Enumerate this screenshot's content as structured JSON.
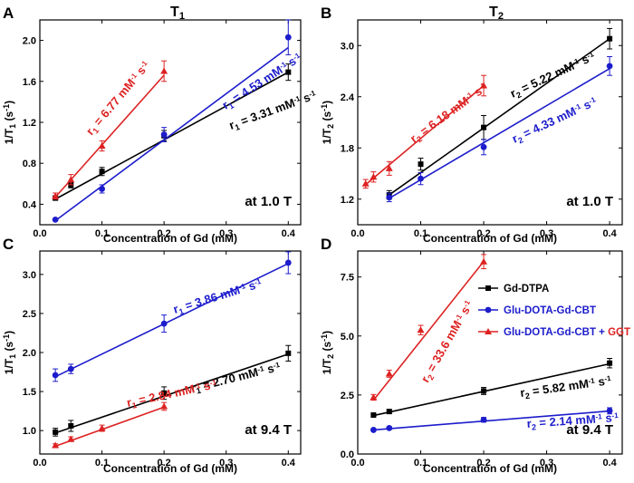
{
  "figure": {
    "x_unit_note": "concentration in mM",
    "colors": {
      "black": "#000000",
      "blue": "#1c1ccc",
      "red": "#dd2222",
      "frame": "#000000"
    }
  },
  "legend": {
    "entries": [
      {
        "label": "Gd-DTPA",
        "color": "#000000",
        "marker": "square",
        "suffix": ""
      },
      {
        "label": "Glu-DOTA-Gd-CBT",
        "color": "#1c1ccc",
        "marker": "circle",
        "suffix": ""
      },
      {
        "label": "Glu-DOTA-Gd-CBT + ",
        "color": "#dd2222",
        "marker": "triangle",
        "suffix": "GGT"
      }
    ]
  },
  "chart_data": [
    {
      "id": "A",
      "panel_label": "A",
      "title_main": "T",
      "title_sub": "1",
      "type": "scatter",
      "xlabel": "Concentration of Gd (mM)",
      "ylabel_main": "1/T",
      "ylabel_sub": "1",
      "ylabel_unit": " (s",
      "ylabel_exp": "-1",
      "ylabel_close": ")",
      "xlim": [
        0.0,
        0.42
      ],
      "ylim": [
        0.2,
        2.2
      ],
      "xticks": [
        0.0,
        0.1,
        0.2,
        0.3,
        0.4
      ],
      "xtick_labels": [
        "0.0",
        "0.1",
        "0.2",
        "0.3",
        "0.4"
      ],
      "yticks": [
        0.4,
        0.8,
        1.2,
        1.6,
        2.0
      ],
      "ytick_labels": [
        "0.4",
        "0.8",
        "1.2",
        "1.6",
        "2.0"
      ],
      "field_label": "at 1.0 T",
      "series": [
        {
          "name": "Gd-DTPA",
          "color": "#000000",
          "marker": "square",
          "x": [
            0.025,
            0.05,
            0.1,
            0.2,
            0.4
          ],
          "y": [
            0.46,
            0.59,
            0.72,
            1.07,
            1.69
          ],
          "err": [
            0.02,
            0.03,
            0.04,
            0.05,
            0.08
          ],
          "fit": {
            "x0": 0.025,
            "y0": 0.45,
            "x1": 0.4,
            "y1": 1.69
          },
          "annotation": {
            "r": "r",
            "sub": "1",
            "text": " = 3.31 mM",
            "exp1": "-1",
            "mid": " s",
            "exp2": "-1"
          }
        },
        {
          "name": "Glu-DOTA-Gd-CBT",
          "color": "#1c1ccc",
          "marker": "circle",
          "x": [
            0.025,
            0.1,
            0.2,
            0.4
          ],
          "y": [
            0.25,
            0.55,
            1.08,
            2.03
          ],
          "err": [
            0.01,
            0.04,
            0.07,
            0.17
          ],
          "fit": {
            "x0": 0.025,
            "y0": 0.24,
            "x1": 0.4,
            "y1": 1.93
          },
          "annotation": {
            "r": "r",
            "sub": "1",
            "text": " = 4.53 mM",
            "exp1": "-1",
            "mid": " s",
            "exp2": "-1"
          }
        },
        {
          "name": "Glu-DOTA-Gd-CBT + GGT",
          "color": "#dd2222",
          "marker": "triangle",
          "x": [
            0.025,
            0.05,
            0.1,
            0.2
          ],
          "y": [
            0.48,
            0.64,
            0.97,
            1.7
          ],
          "err": [
            0.03,
            0.05,
            0.05,
            0.1
          ],
          "fit": {
            "x0": 0.025,
            "y0": 0.47,
            "x1": 0.2,
            "y1": 1.66
          },
          "annotation": {
            "r": "r",
            "sub": "1",
            "text": " = 6.77 mM",
            "exp1": "-1",
            "mid": " s",
            "exp2": "-1"
          }
        }
      ]
    },
    {
      "id": "B",
      "panel_label": "B",
      "title_main": "T",
      "title_sub": "2",
      "type": "scatter",
      "xlabel": "Concentration of Gd (mM)",
      "ylabel_main": "1/T",
      "ylabel_sub": "2",
      "ylabel_unit": " (s",
      "ylabel_exp": "-1",
      "ylabel_close": ")",
      "xlim": [
        0.0,
        0.42
      ],
      "ylim": [
        0.9,
        3.3
      ],
      "xticks": [
        0.0,
        0.1,
        0.2,
        0.3,
        0.4
      ],
      "xtick_labels": [
        "0.0",
        "0.1",
        "0.2",
        "0.3",
        "0.4"
      ],
      "yticks": [
        1.2,
        1.8,
        2.4,
        3.0
      ],
      "ytick_labels": [
        "1.2",
        "1.8",
        "2.4",
        "3.0"
      ],
      "field_label": "at 1.0 T",
      "series": [
        {
          "name": "Gd-DTPA",
          "color": "#000000",
          "marker": "square",
          "x": [
            0.05,
            0.1,
            0.2,
            0.4
          ],
          "y": [
            1.25,
            1.61,
            2.04,
            3.08
          ],
          "err": [
            0.05,
            0.07,
            0.14,
            0.12
          ],
          "fit": {
            "x0": 0.05,
            "y0": 1.25,
            "x1": 0.4,
            "y1": 3.08
          },
          "annotation": {
            "r": "r",
            "sub": "2",
            "text": " = 5.22 mM",
            "exp1": "-1",
            "mid": " s",
            "exp2": "-1"
          }
        },
        {
          "name": "Glu-DOTA-Gd-CBT",
          "color": "#1c1ccc",
          "marker": "circle",
          "x": [
            0.05,
            0.1,
            0.2,
            0.4
          ],
          "y": [
            1.22,
            1.44,
            1.81,
            2.76
          ],
          "err": [
            0.05,
            0.07,
            0.09,
            0.11
          ],
          "fit": {
            "x0": 0.05,
            "y0": 1.21,
            "x1": 0.4,
            "y1": 2.73
          },
          "annotation": {
            "r": "r",
            "sub": "2",
            "text": " = 4.33 mM",
            "exp1": "-1",
            "mid": " s",
            "exp2": "-1"
          }
        },
        {
          "name": "Glu-DOTA-Gd-CBT + GGT",
          "color": "#dd2222",
          "marker": "triangle",
          "x": [
            0.0125,
            0.025,
            0.05,
            0.2
          ],
          "y": [
            1.38,
            1.46,
            1.56,
            2.53
          ],
          "err": [
            0.05,
            0.06,
            0.08,
            0.12
          ],
          "fit": {
            "x0": 0.0125,
            "y0": 1.37,
            "x1": 0.2,
            "y1": 2.53
          },
          "annotation": {
            "r": "r",
            "sub": "2",
            "text": " = 6.18 mM",
            "exp1": "-1",
            "mid": " s",
            "exp2": "-1"
          }
        }
      ]
    },
    {
      "id": "C",
      "panel_label": "C",
      "title_main": "",
      "title_sub": "",
      "type": "scatter",
      "xlabel": "Concentration of Gd (mM)",
      "ylabel_main": "1/T",
      "ylabel_sub": "1",
      "ylabel_unit": " (s",
      "ylabel_exp": "-1",
      "ylabel_close": ")",
      "xlim": [
        0.0,
        0.42
      ],
      "ylim": [
        0.7,
        3.3
      ],
      "xticks": [
        0.0,
        0.1,
        0.2,
        0.3,
        0.4
      ],
      "xtick_labels": [
        "0.0",
        "0.1",
        "0.2",
        "0.3",
        "0.4"
      ],
      "yticks": [
        1.0,
        1.5,
        2.0,
        2.5,
        3.0
      ],
      "ytick_labels": [
        "1.0",
        "1.5",
        "2.0",
        "2.5",
        "3.0"
      ],
      "field_label": "at 9.4 T",
      "series": [
        {
          "name": "Gd-DTPA",
          "color": "#000000",
          "marker": "square",
          "x": [
            0.025,
            0.05,
            0.2,
            0.4
          ],
          "y": [
            0.98,
            1.06,
            1.48,
            1.99
          ],
          "err": [
            0.05,
            0.07,
            0.08,
            0.1
          ],
          "fit": {
            "x0": 0.025,
            "y0": 0.97,
            "x1": 0.4,
            "y1": 1.98
          },
          "annotation": {
            "r": "r",
            "sub": "1",
            "text": " = 2.70 mM",
            "exp1": "-1",
            "mid": " s",
            "exp2": "-1"
          }
        },
        {
          "name": "Glu-DOTA-Gd-CBT",
          "color": "#1c1ccc",
          "marker": "circle",
          "x": [
            0.025,
            0.05,
            0.2,
            0.4
          ],
          "y": [
            1.71,
            1.79,
            2.37,
            3.15
          ],
          "err": [
            0.08,
            0.06,
            0.11,
            0.14
          ],
          "fit": {
            "x0": 0.025,
            "y0": 1.69,
            "x1": 0.4,
            "y1": 3.14
          },
          "annotation": {
            "r": "r",
            "sub": "1",
            "text": " = 3.86 mM",
            "exp1": "-1",
            "mid": " s",
            "exp2": "-1"
          }
        },
        {
          "name": "Glu-DOTA-Gd-CBT + GGT",
          "color": "#dd2222",
          "marker": "triangle",
          "x": [
            0.025,
            0.05,
            0.1,
            0.2
          ],
          "y": [
            0.81,
            0.89,
            1.03,
            1.31
          ],
          "err": [
            0.02,
            0.03,
            0.04,
            0.05
          ],
          "fit": {
            "x0": 0.025,
            "y0": 0.8,
            "x1": 0.2,
            "y1": 1.3
          },
          "annotation": {
            "r": "r",
            "sub": "1",
            "text": " = 2.84 mM",
            "exp1": "-1",
            "mid": " s",
            "exp2": "-1"
          }
        }
      ]
    },
    {
      "id": "D",
      "panel_label": "D",
      "title_main": "",
      "title_sub": "",
      "type": "scatter",
      "xlabel": "Concentration of Gd (mM)",
      "ylabel_main": "1/T",
      "ylabel_sub": "2",
      "ylabel_unit": " (s",
      "ylabel_exp": "-1",
      "ylabel_close": ")",
      "xlim": [
        0.0,
        0.42
      ],
      "ylim": [
        0.0,
        8.6
      ],
      "xticks": [
        0.0,
        0.1,
        0.2,
        0.3,
        0.4
      ],
      "xtick_labels": [
        "0.0",
        "0.1",
        "0.2",
        "0.3",
        "0.4"
      ],
      "yticks": [
        0.0,
        2.5,
        5.0,
        7.5
      ],
      "ytick_labels": [
        "0.0",
        "2.5",
        "5.0",
        "7.5"
      ],
      "field_label": "at 9.4 T",
      "series": [
        {
          "name": "Gd-DTPA",
          "color": "#000000",
          "marker": "square",
          "x": [
            0.025,
            0.05,
            0.2,
            0.4
          ],
          "y": [
            1.65,
            1.8,
            2.67,
            3.85
          ],
          "err": [
            0.05,
            0.08,
            0.15,
            0.2
          ],
          "fit": {
            "x0": 0.025,
            "y0": 1.63,
            "x1": 0.4,
            "y1": 3.82
          },
          "annotation": {
            "r": "r",
            "sub": "2",
            "text": " = 5.82 mM",
            "exp1": "-1",
            "mid": " s",
            "exp2": "-1"
          }
        },
        {
          "name": "Glu-DOTA-Gd-CBT",
          "color": "#1c1ccc",
          "marker": "circle",
          "x": [
            0.025,
            0.05,
            0.2,
            0.4
          ],
          "y": [
            1.02,
            1.1,
            1.45,
            1.83
          ],
          "err": [
            0.05,
            0.06,
            0.1,
            0.13
          ],
          "fit": {
            "x0": 0.025,
            "y0": 1.02,
            "x1": 0.4,
            "y1": 1.82
          },
          "annotation": {
            "r": "r",
            "sub": "2",
            "text": " = 2.14 mM",
            "exp1": "-1",
            "mid": " s",
            "exp2": "-1"
          }
        },
        {
          "name": "Glu-DOTA-Gd-CBT + GGT",
          "color": "#dd2222",
          "marker": "triangle",
          "x": [
            0.025,
            0.05,
            0.1,
            0.2
          ],
          "y": [
            2.4,
            3.4,
            5.25,
            8.15
          ],
          "err": [
            0.12,
            0.15,
            0.2,
            0.3
          ],
          "fit": {
            "x0": 0.025,
            "y0": 2.28,
            "x1": 0.2,
            "y1": 8.16
          },
          "annotation": {
            "r": "r",
            "sub": "2",
            "text": " = 33.6 mM",
            "exp1": "-1",
            "mid": " s",
            "exp2": "-1"
          }
        }
      ]
    }
  ]
}
